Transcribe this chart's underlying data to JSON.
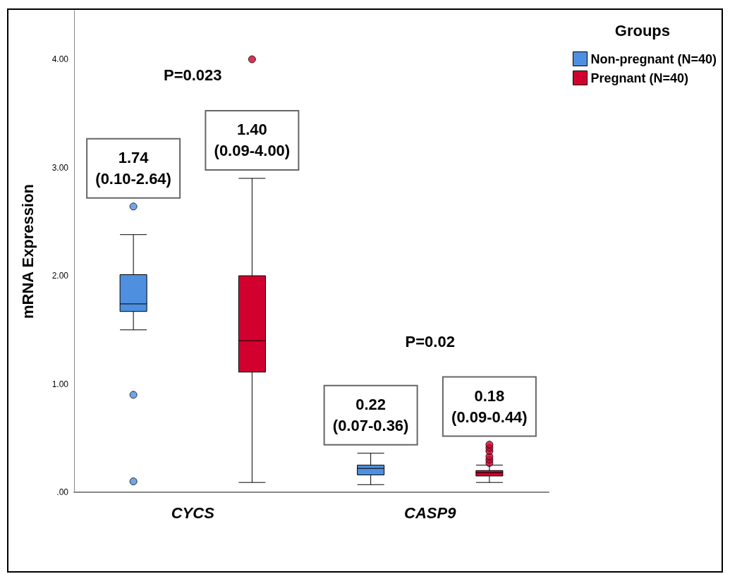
{
  "chart_data": {
    "type": "box",
    "ylabel": "mRNA Expression",
    "legend_title": "Groups",
    "categories": [
      "CYCS",
      "CASP9"
    ],
    "ylim": [
      0,
      4.45
    ],
    "yticks": [
      {
        "value": 0,
        "label": ".00"
      },
      {
        "value": 1,
        "label": "1.00"
      },
      {
        "value": 2,
        "label": "2.00"
      },
      {
        "value": 3,
        "label": "3.00"
      },
      {
        "value": 4,
        "label": "4.00"
      }
    ],
    "grid": false,
    "legend": "top right",
    "series": [
      {
        "name": "Non-pregnant (N=40)",
        "color": "#4f8fdf",
        "boxes": [
          {
            "low": 1.5,
            "q1": 1.67,
            "median": 1.74,
            "q3": 2.01,
            "high": 2.38,
            "outliers": [
              2.64,
              0.9,
              0.1
            ]
          },
          {
            "low": 0.07,
            "q1": 0.16,
            "median": 0.22,
            "q3": 0.25,
            "high": 0.36
          }
        ]
      },
      {
        "name": "Pregnant (N=40)",
        "color": "#d2002e",
        "boxes": [
          {
            "low": 0.09,
            "q1": 1.11,
            "median": 1.4,
            "q3": 2.0,
            "high": 2.9,
            "outliers": [
              4.0
            ]
          },
          {
            "low": 0.09,
            "q1": 0.15,
            "median": 0.18,
            "q3": 0.2,
            "high": 0.25,
            "outliers": [
              0.27,
              0.3,
              0.33,
              0.38,
              0.41,
              0.44
            ]
          }
        ]
      }
    ],
    "annotations": [
      "P=0.023",
      "1.74\n(0.10-2.64)",
      "1.40\n(0.09-4.00)",
      "P=0.02",
      "0.22\n(0.07-0.36)",
      "0.18\n(0.09-0.44)"
    ]
  }
}
